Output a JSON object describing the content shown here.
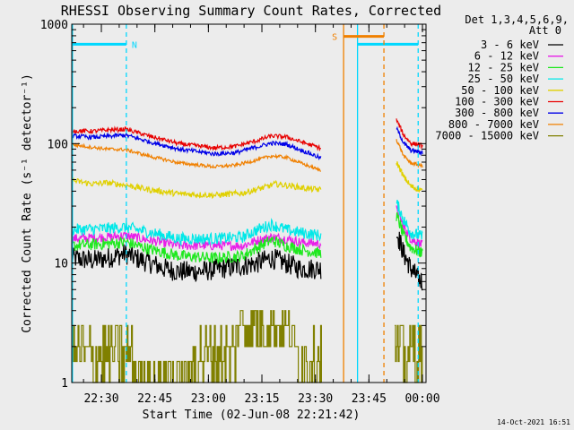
{
  "chart_data": {
    "type": "line",
    "title": "RHESSI Observing Summary Count Rates, Corrected",
    "xlabel": "Start Time (02-Jun-08 22:21:42)",
    "ylabel": "Corrected Count Rate (s⁻¹ detector⁻¹)",
    "yscale": "log",
    "ylim": [
      1,
      1000
    ],
    "xlim_minutes": [
      0,
      99.3
    ],
    "x_ticks": [
      {
        "t": 8.3,
        "label": "22:30"
      },
      {
        "t": 23.3,
        "label": "22:45"
      },
      {
        "t": 38.3,
        "label": "23:00"
      },
      {
        "t": 53.3,
        "label": "23:15"
      },
      {
        "t": 68.3,
        "label": "23:30"
      },
      {
        "t": 83.3,
        "label": "23:45"
      },
      {
        "t": 98.3,
        "label": "00:00"
      }
    ],
    "y_ticks": [
      {
        "v": 1,
        "label": "1"
      },
      {
        "v": 10,
        "label": "10"
      },
      {
        "v": 100,
        "label": "100"
      },
      {
        "v": 1000,
        "label": "1000"
      }
    ],
    "legend": {
      "header": [
        "Det 1,3,4,5,6,9,",
        "Att 0"
      ],
      "position": "right"
    },
    "series": [
      {
        "name": "3 - 6 keV",
        "color": "#000000",
        "noise": 0.09,
        "seg1": [
          [
            0,
            11
          ],
          [
            6,
            10.5
          ],
          [
            10,
            11
          ],
          [
            15,
            12
          ],
          [
            18,
            11
          ],
          [
            22,
            10
          ],
          [
            26,
            9
          ],
          [
            30,
            8.5
          ],
          [
            36,
            8.5
          ],
          [
            42,
            9
          ],
          [
            48,
            9.5
          ],
          [
            52,
            10
          ],
          [
            56,
            11
          ],
          [
            60,
            10
          ],
          [
            64,
            9
          ],
          [
            68,
            9
          ],
          [
            70,
            9
          ]
        ],
        "seg2": [
          [
            91,
            18
          ],
          [
            93,
            12
          ],
          [
            95,
            9
          ],
          [
            97,
            7.5
          ],
          [
            98.4,
            7
          ]
        ]
      },
      {
        "name": "6 - 12 keV",
        "color": "#e81ee8",
        "noise": 0.04,
        "seg1": [
          [
            0,
            16
          ],
          [
            10,
            16.5
          ],
          [
            15,
            17
          ],
          [
            22,
            15.5
          ],
          [
            30,
            14
          ],
          [
            40,
            14
          ],
          [
            48,
            14
          ],
          [
            52,
            15.5
          ],
          [
            56,
            16.5
          ],
          [
            60,
            16
          ],
          [
            64,
            15
          ],
          [
            70,
            14.5
          ]
        ],
        "seg2": [
          [
            91,
            28
          ],
          [
            93,
            20
          ],
          [
            95,
            16
          ],
          [
            98.4,
            14
          ]
        ]
      },
      {
        "name": "12 - 25 keV",
        "color": "#1ee81e",
        "noise": 0.05,
        "seg1": [
          [
            0,
            14
          ],
          [
            10,
            14.5
          ],
          [
            15,
            15
          ],
          [
            22,
            13
          ],
          [
            30,
            11.5
          ],
          [
            40,
            11
          ],
          [
            48,
            11.5
          ],
          [
            52,
            13.5
          ],
          [
            56,
            15.5
          ],
          [
            60,
            14
          ],
          [
            64,
            13
          ],
          [
            70,
            12
          ]
        ],
        "seg2": [
          [
            91,
            25
          ],
          [
            93,
            17
          ],
          [
            95,
            13.5
          ],
          [
            98.4,
            12
          ]
        ]
      },
      {
        "name": "25 - 50 keV",
        "color": "#00e8e8",
        "noise": 0.05,
        "seg1": [
          [
            0,
            19
          ],
          [
            10,
            19.5
          ],
          [
            15,
            20
          ],
          [
            22,
            18
          ],
          [
            30,
            16
          ],
          [
            40,
            16
          ],
          [
            48,
            16.5
          ],
          [
            52,
            19
          ],
          [
            56,
            21
          ],
          [
            60,
            19
          ],
          [
            64,
            18
          ],
          [
            70,
            17
          ]
        ],
        "seg2": [
          [
            91,
            32
          ],
          [
            93,
            23
          ],
          [
            95,
            18
          ],
          [
            98.4,
            16.5
          ]
        ]
      },
      {
        "name": "50 - 100 keV",
        "color": "#e0d000",
        "noise": 0.025,
        "seg1": [
          [
            0,
            49
          ],
          [
            6,
            46
          ],
          [
            10,
            47
          ],
          [
            15,
            45
          ],
          [
            22,
            41
          ],
          [
            30,
            38
          ],
          [
            40,
            37
          ],
          [
            48,
            38.5
          ],
          [
            54,
            43
          ],
          [
            57,
            46
          ],
          [
            62,
            44
          ],
          [
            66,
            42
          ],
          [
            70,
            41
          ]
        ],
        "seg2": [
          [
            91,
            70
          ],
          [
            93,
            53
          ],
          [
            95,
            44
          ],
          [
            98.4,
            40
          ]
        ]
      },
      {
        "name": "100 - 300 keV",
        "color": "#e80000",
        "noise": 0.018,
        "seg1": [
          [
            0,
            128
          ],
          [
            6,
            127
          ],
          [
            10,
            130
          ],
          [
            15,
            132
          ],
          [
            22,
            115
          ],
          [
            30,
            100
          ],
          [
            40,
            92
          ],
          [
            46,
            95
          ],
          [
            52,
            106
          ],
          [
            56,
            116
          ],
          [
            60,
            114
          ],
          [
            64,
            104
          ],
          [
            70,
            91
          ]
        ],
        "seg2": [
          [
            91,
            158
          ],
          [
            93,
            118
          ],
          [
            95,
            101
          ],
          [
            98.4,
            96
          ]
        ]
      },
      {
        "name": "300 - 800 keV",
        "color": "#0000e8",
        "noise": 0.018,
        "seg1": [
          [
            0,
            116
          ],
          [
            6,
            113
          ],
          [
            10,
            115
          ],
          [
            15,
            118
          ],
          [
            22,
            103
          ],
          [
            30,
            90
          ],
          [
            40,
            82
          ],
          [
            46,
            84
          ],
          [
            52,
            94
          ],
          [
            56,
            101
          ],
          [
            60,
            99
          ],
          [
            64,
            89
          ],
          [
            70,
            75
          ]
        ],
        "seg2": [
          [
            91,
            135
          ],
          [
            93,
            101
          ],
          [
            95,
            88
          ],
          [
            98.4,
            84
          ]
        ]
      },
      {
        "name": "800 - 7000 keV",
        "color": "#f08000",
        "noise": 0.014,
        "seg1": [
          [
            0,
            98
          ],
          [
            6,
            93
          ],
          [
            10,
            90
          ],
          [
            15,
            89
          ],
          [
            22,
            78
          ],
          [
            30,
            69
          ],
          [
            40,
            64
          ],
          [
            46,
            66
          ],
          [
            52,
            73
          ],
          [
            56,
            79
          ],
          [
            60,
            77
          ],
          [
            64,
            69
          ],
          [
            70,
            59
          ]
        ],
        "seg2": [
          [
            91,
            108
          ],
          [
            93,
            79
          ],
          [
            95,
            69
          ],
          [
            98.4,
            65
          ]
        ]
      },
      {
        "name": "7000 - 15000 keV",
        "color": "#808000",
        "noise": 0,
        "seg1": [
          [
            0,
            1.5
          ],
          [
            70,
            1.5
          ]
        ],
        "seg2": [
          [
            90.5,
            1.5
          ],
          [
            98.4,
            1.5
          ]
        ]
      }
    ],
    "markers": [
      {
        "type": "vline",
        "t": 0.2,
        "color": "#00d8ff",
        "style": "solid"
      },
      {
        "type": "vline",
        "t": 15.3,
        "color": "#00d8ff",
        "style": "dashed"
      },
      {
        "type": "hbar",
        "t0": 0,
        "t1": 15.3,
        "y": 680,
        "color": "#00d8ff",
        "label": "N"
      },
      {
        "type": "vline",
        "t": 80.1,
        "color": "#00d8ff",
        "style": "solid"
      },
      {
        "type": "vline",
        "t": 97.1,
        "color": "#00d8ff",
        "style": "dashed"
      },
      {
        "type": "hbar",
        "t0": 80.1,
        "t1": 97.1,
        "y": 680,
        "color": "#00d8ff",
        "label": ""
      },
      {
        "type": "vline",
        "t": 76.2,
        "color": "#f08000",
        "style": "solid"
      },
      {
        "type": "vline",
        "t": 87.5,
        "color": "#f08000",
        "style": "dashed"
      },
      {
        "type": "hbar",
        "t0": 76.2,
        "t1": 87.5,
        "y": 790,
        "color": "#f08000",
        "label": "S"
      }
    ]
  },
  "footer": {
    "timestamp": "14-Oct-2021 16:51"
  }
}
